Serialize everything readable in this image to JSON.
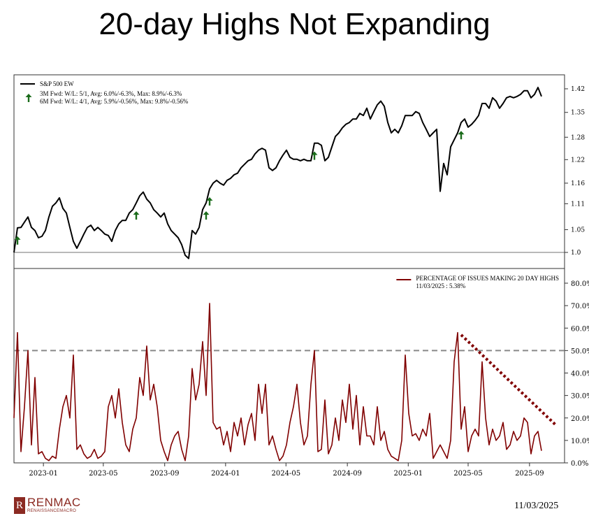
{
  "page_title": "20-day Highs Not Expanding",
  "footer": {
    "logo_text": "RENMAC",
    "logo_subtext": "RENAISSANCEMACRO",
    "date": "11/03/2025"
  },
  "chart_data": [
    {
      "type": "line",
      "panel": "top",
      "title": "",
      "x_start": "2022-11-03",
      "x_frequency": "weekly",
      "yscale": "log",
      "ylim": [
        0.98,
        1.45
      ],
      "yticks": [
        "1.0",
        "1.05",
        "1.11",
        "1.16",
        "1.22",
        "1.28",
        "1.35",
        "1.42"
      ],
      "ytick_values": [
        1.0,
        1.05,
        1.11,
        1.16,
        1.22,
        1.28,
        1.35,
        1.42
      ],
      "reference_line": 1.0,
      "legend": {
        "placement": "top-left",
        "series_label": "S&P 500 EW",
        "signal_line1": "3M Fwd: W/L: 5/1, Avg: 6.0%/-6.3%, Max: 8.9%/-6.3%",
        "signal_line2": "6M Fwd: W/L: 4/1, Avg: 5.9%/-0.56%, Max: 9.8%/-0.56%"
      },
      "series": [
        {
          "name": "S&P 500 EW",
          "color": "#000000",
          "values": [
            1.0,
            1.054,
            1.055,
            1.067,
            1.079,
            1.055,
            1.048,
            1.032,
            1.035,
            1.048,
            1.079,
            1.104,
            1.112,
            1.124,
            1.099,
            1.088,
            1.055,
            1.024,
            1.009,
            1.024,
            1.04,
            1.055,
            1.06,
            1.048,
            1.055,
            1.048,
            1.04,
            1.037,
            1.024,
            1.048,
            1.063,
            1.071,
            1.071,
            1.088,
            1.096,
            1.112,
            1.129,
            1.138,
            1.121,
            1.112,
            1.096,
            1.088,
            1.079,
            1.088,
            1.063,
            1.048,
            1.04,
            1.032,
            1.017,
            0.994,
            0.987,
            1.048,
            1.04,
            1.055,
            1.096,
            1.112,
            1.146,
            1.16,
            1.167,
            1.16,
            1.155,
            1.167,
            1.172,
            1.181,
            1.185,
            1.199,
            1.208,
            1.217,
            1.221,
            1.235,
            1.245,
            1.25,
            1.245,
            1.199,
            1.192,
            1.199,
            1.217,
            1.232,
            1.245,
            1.226,
            1.221,
            1.221,
            1.217,
            1.221,
            1.217,
            1.217,
            1.264,
            1.264,
            1.258,
            1.217,
            1.226,
            1.254,
            1.282,
            1.292,
            1.306,
            1.316,
            1.321,
            1.331,
            1.331,
            1.347,
            1.341,
            1.362,
            1.331,
            1.352,
            1.372,
            1.383,
            1.368,
            1.321,
            1.292,
            1.302,
            1.292,
            1.312,
            1.341,
            1.341,
            1.341,
            1.352,
            1.347,
            1.321,
            1.302,
            1.282,
            1.292,
            1.302,
            1.14,
            1.21,
            1.181,
            1.254,
            1.273,
            1.292,
            1.321,
            1.331,
            1.308,
            1.316,
            1.327,
            1.341,
            1.376,
            1.376,
            1.362,
            1.393,
            1.383,
            1.362,
            1.376,
            1.393,
            1.397,
            1.393,
            1.397,
            1.403,
            1.414,
            1.414,
            1.393,
            1.403,
            1.424,
            1.397
          ]
        }
      ],
      "signal_indices": [
        1,
        35,
        55,
        56,
        86,
        128
      ],
      "signal_color": "#1a6b1a"
    },
    {
      "type": "line",
      "panel": "bottom",
      "x_start": "2022-11-03",
      "x_frequency": "weekly",
      "ylim": [
        0,
        80
      ],
      "yticks": [
        "0.0%",
        "10.0%",
        "20.0%",
        "30.0%",
        "40.0%",
        "50.0%",
        "60.0%",
        "70.0%",
        "80.0%"
      ],
      "ytick_values": [
        0,
        10,
        20,
        30,
        40,
        50,
        60,
        70,
        80
      ],
      "xticks": [
        "2023-01",
        "2023-05",
        "2023-09",
        "2024-01",
        "2024-05",
        "2024-09",
        "2025-01",
        "2025-05",
        "2025-09"
      ],
      "reference_line": 50,
      "legend": {
        "placement": "top-right",
        "series_label": "PERCENTAGE OF ISSUES MAKING 20 DAY HIGHS",
        "last_value_label": "11/03/2025 : 5.38%"
      },
      "trendline": {
        "start_index": 128,
        "start_value": 57,
        "end_index": 155,
        "end_value": 17,
        "color": "#800000",
        "style": "dotted"
      },
      "series": [
        {
          "name": "PERCENTAGE OF ISSUES MAKING 20 DAY HIGHS",
          "color": "#800000",
          "values": [
            20,
            58,
            5,
            25,
            50,
            8,
            38,
            4,
            5,
            2,
            1,
            3,
            2,
            15,
            25,
            30,
            20,
            48,
            6,
            8,
            4,
            2,
            3,
            6,
            2,
            3,
            5,
            25,
            30,
            20,
            33,
            18,
            8,
            5,
            15,
            20,
            38,
            30,
            52,
            28,
            35,
            25,
            10,
            5,
            1,
            8,
            12,
            14,
            6,
            1,
            12,
            42,
            28,
            35,
            54,
            30,
            71,
            18,
            15,
            16,
            8,
            14,
            5,
            18,
            12,
            20,
            8,
            17,
            22,
            10,
            35,
            22,
            35,
            8,
            12,
            6,
            1,
            3,
            8,
            18,
            25,
            35,
            18,
            8,
            12,
            35,
            50,
            5,
            6,
            28,
            4,
            8,
            20,
            10,
            28,
            18,
            35,
            15,
            30,
            8,
            25,
            12,
            12,
            8,
            25,
            10,
            14,
            6,
            3,
            2,
            1,
            10,
            48,
            22,
            12,
            13,
            10,
            15,
            12,
            22,
            2,
            5,
            8,
            5,
            2,
            10,
            45,
            58,
            15,
            25,
            5,
            12,
            15,
            12,
            45,
            20,
            8,
            15,
            10,
            12,
            18,
            6,
            8,
            14,
            10,
            12,
            20,
            18,
            4,
            12,
            14,
            5.38
          ]
        }
      ]
    }
  ]
}
